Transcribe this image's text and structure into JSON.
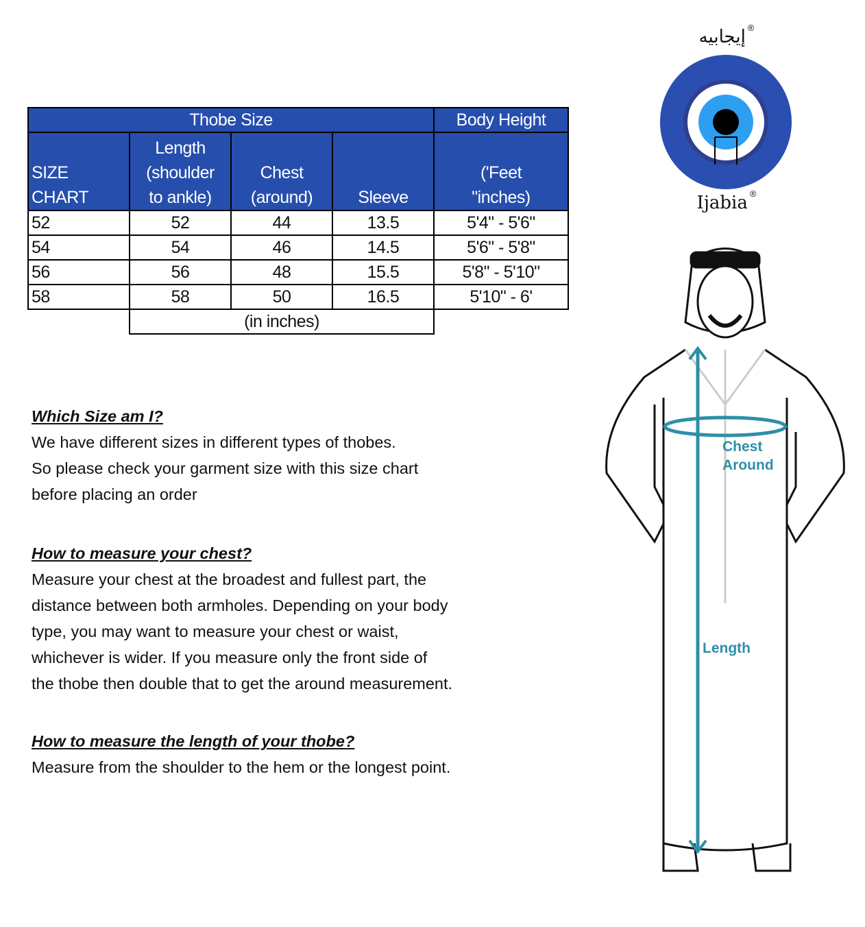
{
  "table": {
    "group_headers": [
      "Thobe Size",
      "Body Height"
    ],
    "columns": [
      [
        "SIZE",
        "CHART"
      ],
      [
        "Length",
        "(shoulder",
        "to ankle)"
      ],
      [
        "Chest",
        "(around)"
      ],
      [
        "Sleeve"
      ],
      [
        "('Feet",
        "\"inches)"
      ]
    ],
    "rows": [
      [
        "52",
        "52",
        "44",
        "13.5",
        "5'4\" - 5'6\""
      ],
      [
        "54",
        "54",
        "46",
        "14.5",
        "5'6\" - 5'8\""
      ],
      [
        "56",
        "56",
        "48",
        "15.5",
        "5'8\" - 5'10\""
      ],
      [
        "58",
        "58",
        "50",
        "16.5",
        "5'10\" - 6'"
      ]
    ],
    "unit_note": "(in inches)"
  },
  "sections": [
    {
      "heading": "Which Size am I?",
      "lines": [
        "We have different sizes in different types of thobes.",
        "So please check your garment size with this size chart",
        "before placing an order"
      ]
    },
    {
      "heading": "How to measure your chest?",
      "lines": [
        "Measure your chest at the broadest and fullest part, the",
        "distance between both armholes. Depending on your body",
        "type, you may want to measure your chest or waist,",
        "whichever is wider. If you measure only the front side of",
        "the thobe then double that to get the around measurement."
      ]
    },
    {
      "heading": "How to measure the length of your thobe?",
      "lines": [
        "Measure from the shoulder to the hem or the longest point."
      ]
    }
  ],
  "logo": {
    "arabic": "إيجابيه",
    "latin": "Ijabia",
    "mark": "®",
    "colors": {
      "outer": "#2a4fb0",
      "iris": "#2e9ff0"
    }
  },
  "figure": {
    "chest_label": [
      "Chest",
      "Around"
    ],
    "length_label": "Length",
    "accent": "#2e8fa6"
  }
}
